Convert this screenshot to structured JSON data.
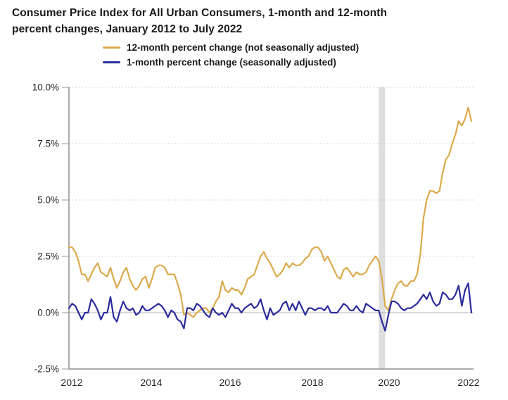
{
  "title_lines": [
    "Consumer Price Index for All Urban Consumers, 1-month and 12-month",
    "percent changes, January 2012 to July 2022"
  ],
  "legend": {
    "items": [
      {
        "label": "12-month percent change (not seasonally adjusted)",
        "color": "#DBAA4B"
      },
      {
        "label": "1-month percent change (seasonally adjusted)",
        "color": "#2B2B9D"
      }
    ]
  },
  "colors": {
    "series_12_month": "#DBAA4B",
    "series_1_month": "#2B2B9D",
    "recession_band": "#dedede",
    "gridline_dotted": "#c9c9c9",
    "zero_line": "#b4b4b4",
    "axis_line": "#8f8f8f",
    "text": "#191919"
  },
  "chart_data": {
    "type": "line",
    "title": "Consumer Price Index for All Urban Consumers, 1-month and 12-month percent changes, January 2012 to July 2022",
    "xlabel": "",
    "ylabel": "percent change",
    "x_start": "2012-01",
    "x_end": "2022-07",
    "x_tick_labels": [
      "2012",
      "2014",
      "2016",
      "2018",
      "2020",
      "2022"
    ],
    "y_tick_labels": [
      "10.0%",
      "7.5%",
      "5.0%",
      "2.5%",
      "0.0%",
      "-2.5%"
    ],
    "y_tick_values": [
      10,
      7.5,
      5,
      2.5,
      0,
      -2.5
    ],
    "ylim": [
      -2.5,
      10.0
    ],
    "grid": "horizontal-dotted",
    "legend_position": "top",
    "recession_band": {
      "start": "2020-02",
      "end": "2020-04",
      "start_month_index": 97,
      "end_month_index": 99,
      "color": "#dedede"
    },
    "series": [
      {
        "name": "12-month percent change (not seasonally adjusted)",
        "color": "#DBAA4B",
        "values": [
          2.9,
          2.9,
          2.7,
          2.3,
          1.7,
          1.7,
          1.4,
          1.7,
          2.0,
          2.2,
          1.8,
          1.7,
          1.6,
          2.0,
          1.5,
          1.1,
          1.4,
          1.8,
          2.0,
          1.5,
          1.2,
          1.0,
          1.2,
          1.5,
          1.6,
          1.1,
          1.5,
          2.0,
          2.1,
          2.1,
          2.0,
          1.7,
          1.7,
          1.7,
          1.3,
          0.8,
          -0.1,
          0.0,
          -0.1,
          -0.2,
          0.0,
          0.1,
          0.2,
          0.2,
          0.0,
          0.2,
          0.5,
          0.7,
          1.4,
          1.0,
          0.9,
          1.1,
          1.0,
          1.0,
          0.8,
          1.1,
          1.5,
          1.6,
          1.7,
          2.1,
          2.5,
          2.7,
          2.4,
          2.2,
          1.9,
          1.6,
          1.7,
          1.9,
          2.2,
          2.0,
          2.2,
          2.1,
          2.1,
          2.2,
          2.4,
          2.5,
          2.8,
          2.9,
          2.9,
          2.7,
          2.3,
          2.5,
          2.2,
          1.9,
          1.6,
          1.5,
          1.9,
          2.0,
          1.8,
          1.6,
          1.8,
          1.7,
          1.7,
          1.8,
          2.1,
          2.3,
          2.5,
          2.3,
          1.5,
          0.3,
          0.1,
          0.6,
          1.0,
          1.3,
          1.4,
          1.2,
          1.2,
          1.4,
          1.4,
          1.7,
          2.6,
          4.2,
          5.0,
          5.4,
          5.4,
          5.3,
          5.4,
          6.2,
          6.8,
          7.0,
          7.5,
          7.9,
          8.5,
          8.3,
          8.6,
          9.1,
          8.5
        ]
      },
      {
        "name": "1-month percent change (seasonally adjusted)",
        "color": "#2B2B9D",
        "values": [
          0.2,
          0.4,
          0.3,
          0.0,
          -0.3,
          0.0,
          0.0,
          0.6,
          0.4,
          0.1,
          -0.3,
          0.0,
          0.0,
          0.7,
          -0.2,
          -0.4,
          0.1,
          0.5,
          0.2,
          0.1,
          0.2,
          -0.1,
          0.0,
          0.3,
          0.1,
          0.1,
          0.2,
          0.3,
          0.4,
          0.3,
          0.1,
          -0.2,
          0.1,
          0.0,
          -0.3,
          -0.4,
          -0.7,
          0.2,
          0.2,
          0.1,
          0.4,
          0.3,
          0.1,
          -0.1,
          -0.2,
          0.2,
          0.0,
          -0.1,
          0.0,
          -0.2,
          0.1,
          0.4,
          0.2,
          0.2,
          0.0,
          0.2,
          0.3,
          0.4,
          0.2,
          0.3,
          0.6,
          0.1,
          -0.3,
          0.2,
          -0.1,
          0.0,
          0.1,
          0.4,
          0.5,
          0.1,
          0.4,
          0.1,
          0.5,
          0.2,
          -0.1,
          0.2,
          0.2,
          0.1,
          0.2,
          0.2,
          0.1,
          0.3,
          0.0,
          0.0,
          0.0,
          0.2,
          0.4,
          0.3,
          0.1,
          0.1,
          0.3,
          0.1,
          0.0,
          0.4,
          0.3,
          0.2,
          0.1,
          0.1,
          -0.4,
          -0.8,
          -0.1,
          0.5,
          0.5,
          0.4,
          0.2,
          0.1,
          0.2,
          0.2,
          0.3,
          0.4,
          0.6,
          0.8,
          0.6,
          0.9,
          0.5,
          0.3,
          0.4,
          0.9,
          0.8,
          0.6,
          0.6,
          0.8,
          1.2,
          0.3,
          1.0,
          1.3,
          0.0
        ]
      }
    ]
  }
}
